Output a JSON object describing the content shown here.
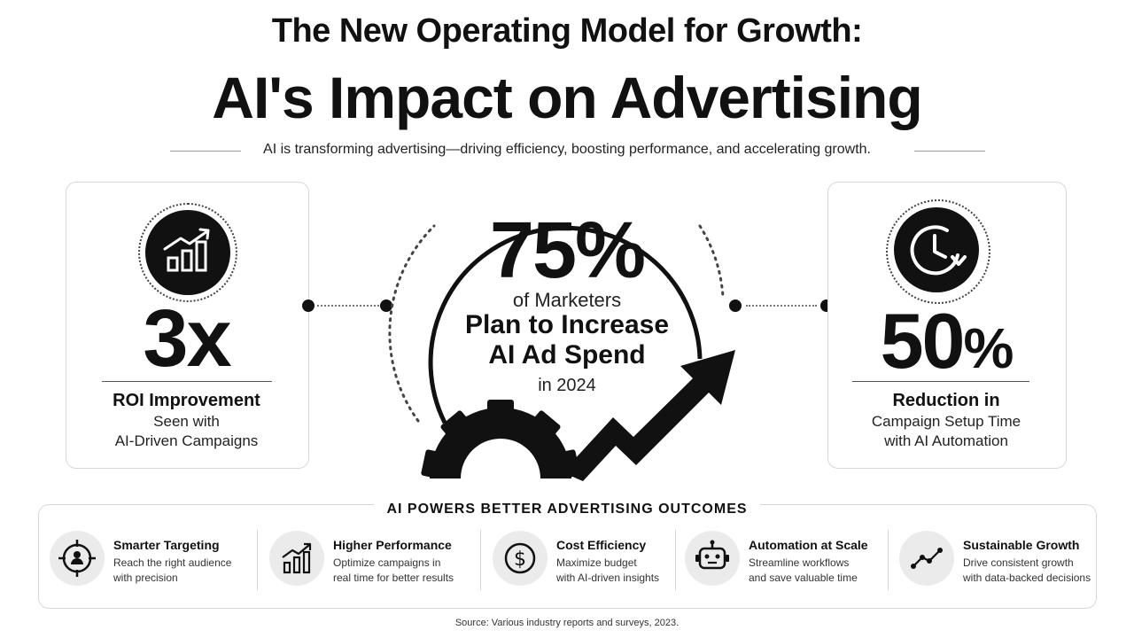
{
  "header": {
    "title_line1": "The New Operating Model for Growth:",
    "title_line2": "AI's Impact on Advertising",
    "subtitle": "AI is transforming advertising—driving efficiency, boosting performance, and accelerating growth."
  },
  "left_stat": {
    "icon": "bar-chart-growth-icon",
    "value": "3x",
    "title": "ROI Improvement",
    "line1": "Seen with",
    "line2": "AI-Driven Campaigns"
  },
  "center_stat": {
    "value": "75%",
    "line1": "of Marketers",
    "line2": "Plan to Increase",
    "line3": "AI Ad Spend",
    "line4": "in 2024",
    "graphic": "gear-with-rising-arrow"
  },
  "right_stat": {
    "icon": "clock-reduction-icon",
    "value": "50",
    "value_suffix": "%",
    "title": "Reduction in",
    "line1": "Campaign Setup Time",
    "line2": "with AI Automation"
  },
  "outcomes": {
    "heading": "AI POWERS BETTER ADVERTISING OUTCOMES",
    "items": [
      {
        "icon": "target-person-icon",
        "title": "Smarter Targeting",
        "line1": "Reach the right audience",
        "line2": "with precision"
      },
      {
        "icon": "bar-chart-icon",
        "title": "Higher Performance",
        "line1": "Optimize campaigns in",
        "line2": "real time for better results"
      },
      {
        "icon": "dollar-icon",
        "title": "Cost Efficiency",
        "line1": "Maximize budget",
        "line2": "with AI-driven insights"
      },
      {
        "icon": "robot-icon",
        "title": "Automation at Scale",
        "line1": "Streamline workflows",
        "line2": "and save valuable time"
      },
      {
        "icon": "trend-line-icon",
        "title": "Sustainable Growth",
        "line1": "Drive consistent growth",
        "line2": "with data-backed decisions"
      }
    ]
  },
  "footer": {
    "source": "Source: Various industry reports and surveys, 2023."
  },
  "colors": {
    "ink": "#111111",
    "card_border": "#d8d8d8",
    "icon_bg": "#ebebeb"
  }
}
